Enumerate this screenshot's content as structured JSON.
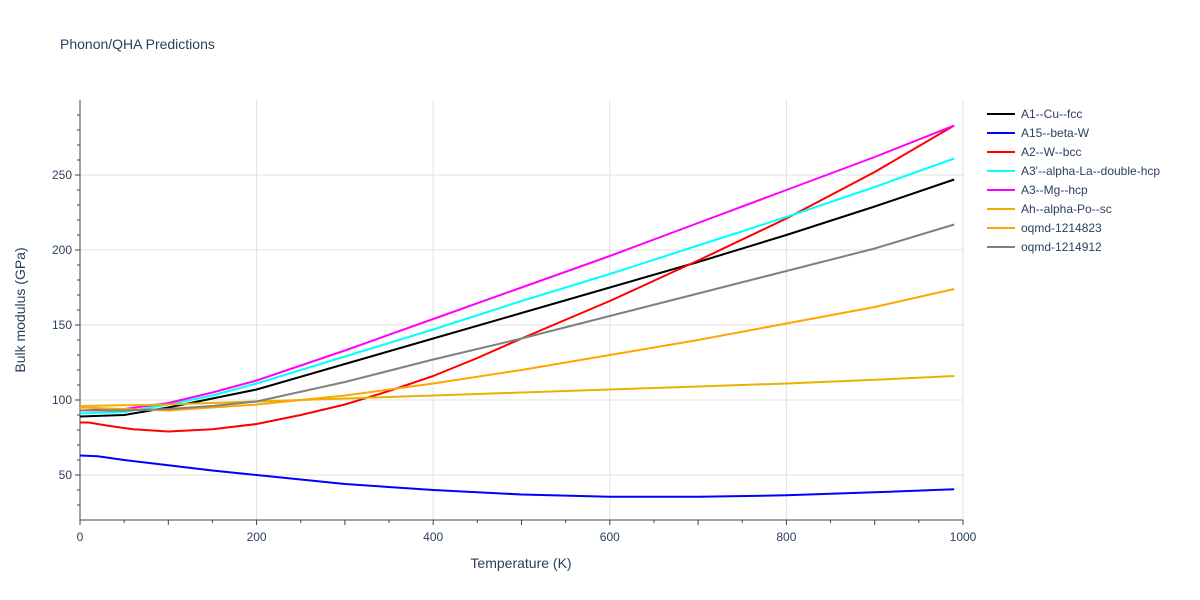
{
  "chart_data": {
    "type": "line",
    "title": "Phonon/QHA Predictions",
    "xlabel": "Temperature (K)",
    "ylabel": "Bulk modulus (GPa)",
    "xlim": [
      0,
      1000
    ],
    "ylim": [
      20,
      300
    ],
    "x_ticks": [
      0,
      200,
      400,
      600,
      800,
      1000
    ],
    "y_ticks": [
      50,
      100,
      150,
      200,
      250
    ],
    "grid": true,
    "legend_position": "right",
    "series": [
      {
        "name": "A1--Cu--fcc",
        "color": "#000000",
        "x": [
          0,
          50,
          100,
          150,
          200,
          300,
          400,
          500,
          600,
          700,
          800,
          900,
          990
        ],
        "y": [
          89,
          90,
          95,
          101,
          107,
          124,
          141,
          158,
          175,
          192,
          210,
          229,
          247
        ]
      },
      {
        "name": "A15--beta-W",
        "color": "#0000ff",
        "x": [
          0,
          20,
          50,
          100,
          150,
          200,
          300,
          400,
          500,
          600,
          700,
          800,
          900,
          990
        ],
        "y": [
          63,
          62.5,
          60,
          56.5,
          53,
          50,
          44,
          40,
          37,
          35.5,
          35.5,
          36.5,
          38.5,
          40.5
        ]
      },
      {
        "name": "A2--W--bcc",
        "color": "#ff0000",
        "x": [
          0,
          10,
          30,
          60,
          100,
          150,
          200,
          250,
          300,
          350,
          400,
          450,
          500,
          600,
          700,
          800,
          900,
          990
        ],
        "y": [
          85,
          85,
          83,
          80.5,
          79,
          80.5,
          84,
          90,
          97,
          106,
          116,
          128,
          141,
          166,
          193,
          221,
          252,
          283
        ]
      },
      {
        "name": "A3'--alpha-La--double-hcp",
        "color": "#00ffff",
        "x": [
          0,
          50,
          100,
          150,
          200,
          300,
          400,
          500,
          600,
          700,
          800,
          900,
          990
        ],
        "y": [
          91,
          92,
          97,
          103,
          111,
          129,
          147,
          166,
          184,
          203,
          222,
          242,
          261
        ]
      },
      {
        "name": "A3--Mg--hcp",
        "color": "#ff00ff",
        "x": [
          0,
          50,
          100,
          150,
          200,
          300,
          400,
          500,
          600,
          700,
          800,
          900,
          990
        ],
        "y": [
          93,
          94,
          98,
          105,
          113,
          133,
          154,
          175,
          196,
          218,
          240,
          262,
          283
        ]
      },
      {
        "name": "Ah--alpha-Po--sc",
        "color": "#e6b400",
        "x": [
          0,
          100,
          200,
          300,
          400,
          500,
          600,
          700,
          800,
          900,
          990
        ],
        "y": [
          96,
          97,
          99,
          101,
          103,
          105,
          107,
          109,
          111,
          113.5,
          116
        ]
      },
      {
        "name": "oqmd-1214823",
        "color": "#ffa500",
        "x": [
          0,
          50,
          100,
          150,
          200,
          300,
          400,
          500,
          600,
          700,
          800,
          900,
          990
        ],
        "y": [
          95,
          94,
          93,
          95,
          97,
          103,
          111,
          120,
          130,
          140,
          151,
          162,
          174
        ]
      },
      {
        "name": "oqmd-1214912",
        "color": "#808080",
        "x": [
          0,
          50,
          100,
          150,
          200,
          300,
          400,
          500,
          600,
          700,
          800,
          900,
          990
        ],
        "y": [
          93,
          93,
          94,
          96,
          99,
          112,
          127,
          141,
          156,
          171,
          186,
          201,
          217
        ]
      }
    ]
  }
}
